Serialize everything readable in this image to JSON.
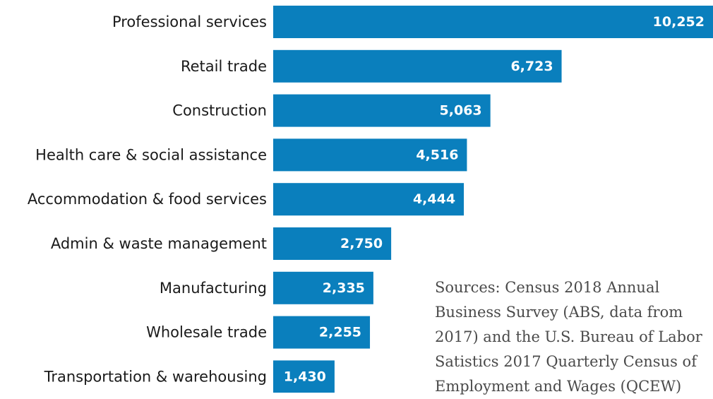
{
  "chart_data": {
    "type": "bar",
    "orientation": "horizontal",
    "categories": [
      "Professional services",
      "Retail trade",
      "Construction",
      "Health care & social assistance",
      "Accommodation & food services",
      "Admin & waste management",
      "Manufacturing",
      "Wholesale trade",
      "Transportation & warehousing"
    ],
    "values": [
      10252,
      6723,
      5063,
      4516,
      4444,
      2750,
      2335,
      2255,
      1430
    ],
    "value_labels": [
      "10,252",
      "6,723",
      "5,063",
      "4,516",
      "4,444",
      "2,750",
      "2,335",
      "2,255",
      "1,430"
    ],
    "bar_color": "#0a7fbd",
    "xlim": [
      0,
      10252
    ],
    "grid": false,
    "legend": "none"
  },
  "source_note": "Sources: Census 2018 Annual Business Survey (ABS, data from 2017) and the U.S. Bureau of Labor Satistics 2017 Quarterly Census of Employment and Wages (QCEW)"
}
